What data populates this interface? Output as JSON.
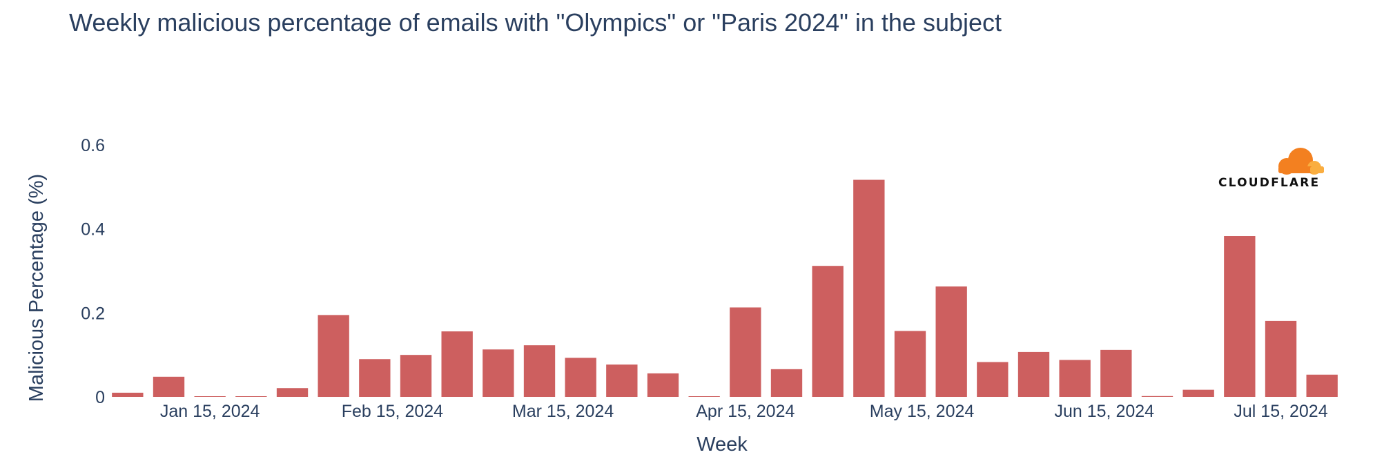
{
  "chart_data": {
    "type": "bar",
    "title": "Weekly malicious percentage of emails with \"Olympics\" or \"Paris 2024\" in the subject",
    "xlabel": "Week",
    "ylabel": "Malicious Percentage (%)",
    "x": [
      "2024-01-01",
      "2024-01-08",
      "2024-01-15",
      "2024-01-22",
      "2024-01-29",
      "2024-02-05",
      "2024-02-12",
      "2024-02-19",
      "2024-02-26",
      "2024-03-04",
      "2024-03-11",
      "2024-03-18",
      "2024-03-25",
      "2024-04-01",
      "2024-04-08",
      "2024-04-15",
      "2024-04-22",
      "2024-04-29",
      "2024-05-06",
      "2024-05-13",
      "2024-05-20",
      "2024-05-27",
      "2024-06-03",
      "2024-06-10",
      "2024-06-17",
      "2024-06-24",
      "2024-07-01",
      "2024-07-08",
      "2024-07-15",
      "2024-07-22"
    ],
    "values": [
      0.01,
      0.048,
      0.0005,
      0.0005,
      0.021,
      0.195,
      0.09,
      0.1,
      0.156,
      0.113,
      0.123,
      0.093,
      0.077,
      0.056,
      0.001,
      0.213,
      0.066,
      0.312,
      0.517,
      0.157,
      0.263,
      0.083,
      0.107,
      0.088,
      0.112,
      0.002,
      0.017,
      0.383,
      0.181,
      0.053
    ],
    "xticks": [
      {
        "date": "2024-01-15",
        "label": "Jan 15, 2024"
      },
      {
        "date": "2024-02-15",
        "label": "Feb 15, 2024"
      },
      {
        "date": "2024-03-15",
        "label": "Mar 15, 2024"
      },
      {
        "date": "2024-04-15",
        "label": "Apr 15, 2024"
      },
      {
        "date": "2024-05-15",
        "label": "May 15, 2024"
      },
      {
        "date": "2024-06-15",
        "label": "Jun 15, 2024"
      },
      {
        "date": "2024-07-15",
        "label": "Jul 15, 2024"
      }
    ],
    "yticks": [
      {
        "value": 0,
        "label": "0"
      },
      {
        "value": 0.2,
        "label": "0.2"
      },
      {
        "value": 0.4,
        "label": "0.4"
      },
      {
        "value": 0.6,
        "label": "0.6"
      }
    ],
    "ylim": [
      0,
      0.68
    ],
    "bar_color": "#cd5f5f",
    "grid": false,
    "legend": "none"
  },
  "logo": {
    "text": "CLOUDFLARE",
    "icon": "cloud-icon",
    "colors": [
      "#f38020",
      "#faae40"
    ]
  }
}
